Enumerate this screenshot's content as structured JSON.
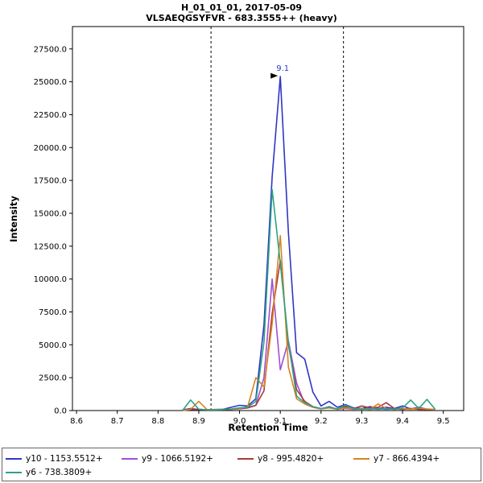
{
  "chart_data": {
    "type": "line",
    "title": "H_01_01_01, 2017-05-09",
    "subtitle": "VLSAEQGSYFVR - 683.3555++ (heavy)",
    "xlabel": "Retention Time",
    "ylabel": "Intensity",
    "xlim": [
      8.59,
      9.55
    ],
    "ylim": [
      0,
      29200
    ],
    "x_ticks": [
      8.6,
      8.7,
      8.8,
      8.9,
      9.0,
      9.1,
      9.2,
      9.3,
      9.4,
      9.5
    ],
    "y_ticks": [
      0,
      2500,
      5000,
      7500,
      10000,
      12500,
      15000,
      17500,
      20000,
      22500,
      25000,
      27500
    ],
    "x_tick_decimals": 1,
    "y_tick_decimals": 1,
    "grid": false,
    "legend_position": "bottom",
    "integration_boundaries": [
      8.93,
      9.255
    ],
    "boundary_line_style": "dashed",
    "peak_annotation": {
      "x": 9.1,
      "y": 25400,
      "label": "9.1",
      "label_color": "#2f35c5",
      "arrow_color": "#000000"
    },
    "x": [
      8.86,
      8.88,
      8.9,
      8.92,
      8.94,
      8.96,
      8.98,
      9.0,
      9.02,
      9.04,
      9.06,
      9.08,
      9.1,
      9.12,
      9.14,
      9.16,
      9.18,
      9.2,
      9.22,
      9.24,
      9.26,
      9.28,
      9.3,
      9.32,
      9.34,
      9.36,
      9.38,
      9.4,
      9.42,
      9.44,
      9.46,
      9.48
    ],
    "series": [
      {
        "name": "y10 - 1153.5512+",
        "color": "#2f35c5",
        "values": [
          50,
          150,
          80,
          60,
          80,
          100,
          250,
          400,
          350,
          900,
          6500,
          17800,
          25400,
          13500,
          4400,
          3900,
          1400,
          350,
          700,
          250,
          450,
          200,
          150,
          300,
          150,
          250,
          150,
          350,
          120,
          250,
          100,
          60
        ]
      },
      {
        "name": "y9 - 1066.5192+",
        "color": "#a04fd0",
        "values": [
          0,
          100,
          80,
          60,
          50,
          80,
          100,
          120,
          200,
          400,
          2500,
          10000,
          3100,
          5300,
          2100,
          500,
          250,
          120,
          300,
          100,
          150,
          100,
          120,
          100,
          150,
          100,
          120,
          100,
          150,
          100,
          120,
          80
        ]
      },
      {
        "name": "y8 - 995.4820+",
        "color": "#a93a38",
        "values": [
          0,
          80,
          100,
          60,
          50,
          70,
          100,
          150,
          200,
          400,
          1500,
          7400,
          11400,
          5000,
          1600,
          700,
          300,
          150,
          250,
          120,
          300,
          150,
          350,
          200,
          250,
          600,
          150,
          100,
          150,
          100,
          80,
          60
        ]
      },
      {
        "name": "y7 - 866.4394+",
        "color": "#d98321",
        "values": [
          0,
          100,
          700,
          80,
          60,
          80,
          100,
          150,
          300,
          2500,
          1800,
          6600,
          13300,
          3300,
          900,
          500,
          250,
          120,
          200,
          100,
          200,
          120,
          150,
          100,
          500,
          150,
          100,
          150,
          100,
          200,
          100,
          80
        ]
      },
      {
        "name": "y6 - 738.3809+",
        "color": "#2ba287",
        "values": [
          0,
          800,
          100,
          60,
          50,
          80,
          120,
          200,
          250,
          700,
          5200,
          16800,
          11200,
          5200,
          1100,
          600,
          300,
          150,
          250,
          120,
          400,
          150,
          100,
          150,
          100,
          150,
          100,
          200,
          800,
          150,
          850,
          100
        ]
      }
    ]
  }
}
